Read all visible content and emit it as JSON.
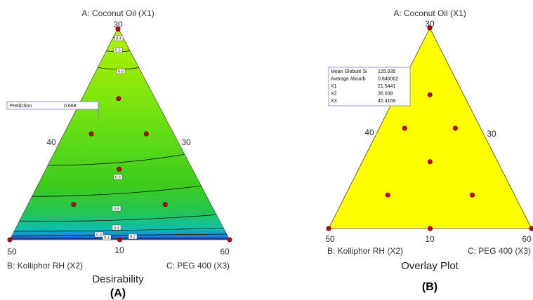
{
  "chart_data": [
    {
      "type": "contour",
      "panel_label": "(A)",
      "plot_name": "Desirability",
      "vertices": {
        "top": "A: Coconut Oil (X1)",
        "left": "B: Kolliphor RH (X2)",
        "right": "C: PEG 400 (X3)"
      },
      "tick_labels": {
        "top": "30",
        "left_bottom": "50",
        "left_mid": "40",
        "bottom_mid": "10",
        "right_bottom": "60",
        "right_mid": "30"
      },
      "contour_levels": [
        "0.4",
        "0.5",
        "0.6",
        "0.6",
        "0.5",
        "0.4",
        "0.3",
        "0.2",
        "0.1"
      ],
      "prediction": {
        "label": "Prediction",
        "value": "0.668"
      },
      "design_points": [
        {
          "u": 0.5,
          "v": 0.995
        },
        {
          "u": 0.5,
          "v": 0.667
        },
        {
          "u": 0.25,
          "v": 0.5
        },
        {
          "u": 0.75,
          "v": 0.5
        },
        {
          "u": 0.5,
          "v": 0.333
        },
        {
          "u": 0.25,
          "v": 0.167
        },
        {
          "u": 0.75,
          "v": 0.167
        },
        {
          "u": 0.0,
          "v": 0.0
        },
        {
          "u": 0.5,
          "v": 0.0
        },
        {
          "u": 1.0,
          "v": 0.0
        }
      ],
      "colors": {
        "top": "#a9f000",
        "mid": "#3fcc1b",
        "low": "#0fbb8a",
        "bottom": "#1a4fd8"
      }
    },
    {
      "type": "overlay",
      "panel_label": "(B)",
      "plot_name": "Overlay Plot",
      "vertices": {
        "top": "A: Coconut Oil (X1)",
        "left": "B: Kolliphor RH (X2)",
        "right": "C: PEG 400 (X3)"
      },
      "tick_labels": {
        "top": "30",
        "left_bottom": "50",
        "left_mid": "40",
        "bottom_mid": "10",
        "right_bottom": "60",
        "right_mid": "30"
      },
      "info_box": [
        {
          "label": "Mean Globule Si",
          "value": "125.935"
        },
        {
          "label": "Average Absorb",
          "value": "0.846082"
        },
        {
          "label": "X1",
          "value": "21.5441"
        },
        {
          "label": "X2",
          "value": "36.039"
        },
        {
          "label": "X3",
          "value": "42.4169"
        }
      ],
      "design_points": [
        {
          "u": 0.5,
          "v": 1.0
        },
        {
          "u": 0.5,
          "v": 0.667
        },
        {
          "u": 0.25,
          "v": 0.5
        },
        {
          "u": 0.75,
          "v": 0.5
        },
        {
          "u": 0.5,
          "v": 0.333
        },
        {
          "u": 0.25,
          "v": 0.167
        },
        {
          "u": 0.75,
          "v": 0.167
        },
        {
          "u": 0.0,
          "v": 0.0
        },
        {
          "u": 0.5,
          "v": 0.0
        },
        {
          "u": 1.0,
          "v": 0.0
        }
      ],
      "colors": {
        "fill": "#ffff00"
      }
    }
  ]
}
